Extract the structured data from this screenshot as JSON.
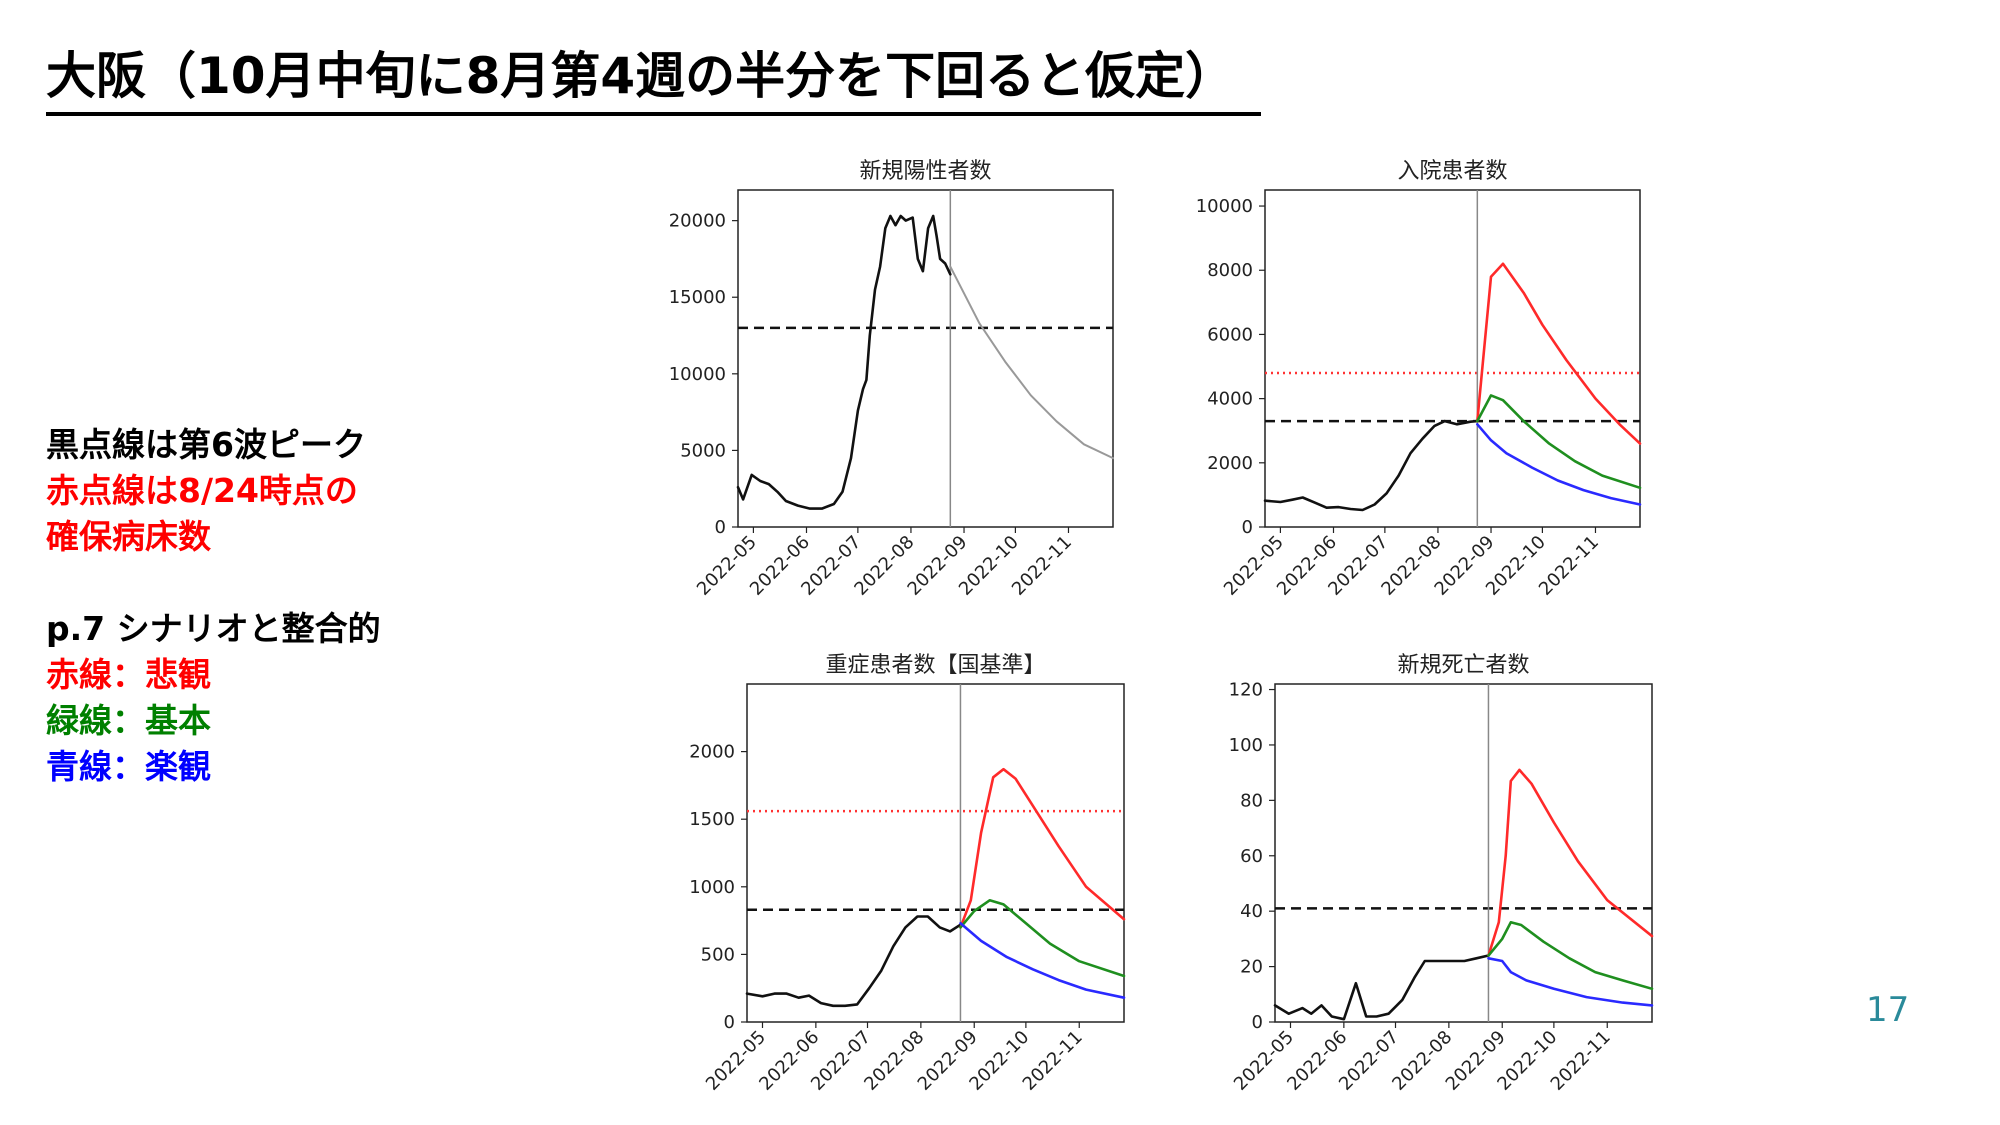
{
  "title": "大阪（10月中旬に8月第4週の半分を下回ると仮定）",
  "legend": {
    "line1": "黒点線は第6波ピーク",
    "line2": "赤点線は8/24時点の",
    "line3": "確保病床数",
    "line4": "p.7 シナリオと整合的",
    "red": "赤線：悲観",
    "green": "緑線：基本",
    "blue": "青線：楽観"
  },
  "page_number": "17",
  "colors": {
    "red": "#ff2a2a",
    "green": "#1f8f1f",
    "blue": "#2a2aff",
    "black": "#111111",
    "gray": "#999999"
  },
  "chart_data": [
    {
      "type": "line",
      "title": "新規陽性者数",
      "xlim": [
        "2022-04-22",
        "2022-11-27"
      ],
      "ylim": [
        0,
        22000
      ],
      "yticks": [
        0,
        5000,
        10000,
        15000,
        20000
      ],
      "xticks": [
        "2022-05",
        "2022-06",
        "2022-07",
        "2022-08",
        "2022-09",
        "2022-10",
        "2022-11"
      ],
      "vline": "2022-08-24",
      "black_dashed": 13000,
      "series": [
        {
          "color": "black",
          "points": [
            [
              "2022-04-22",
              2600
            ],
            [
              "2022-04-25",
              1800
            ],
            [
              "2022-04-30",
              3400
            ],
            [
              "2022-05-05",
              3000
            ],
            [
              "2022-05-10",
              2800
            ],
            [
              "2022-05-15",
              2300
            ],
            [
              "2022-05-20",
              1700
            ],
            [
              "2022-05-27",
              1400
            ],
            [
              "2022-06-03",
              1200
            ],
            [
              "2022-06-10",
              1200
            ],
            [
              "2022-06-17",
              1500
            ],
            [
              "2022-06-22",
              2300
            ],
            [
              "2022-06-27",
              4500
            ],
            [
              "2022-07-01",
              7600
            ],
            [
              "2022-07-04",
              9000
            ],
            [
              "2022-07-06",
              9600
            ],
            [
              "2022-07-08",
              12500
            ],
            [
              "2022-07-11",
              15500
            ],
            [
              "2022-07-14",
              17000
            ],
            [
              "2022-07-17",
              19500
            ],
            [
              "2022-07-20",
              20300
            ],
            [
              "2022-07-23",
              19700
            ],
            [
              "2022-07-26",
              20300
            ],
            [
              "2022-07-29",
              20000
            ],
            [
              "2022-08-02",
              20200
            ],
            [
              "2022-08-05",
              17500
            ],
            [
              "2022-08-08",
              16700
            ],
            [
              "2022-08-11",
              19500
            ],
            [
              "2022-08-14",
              20300
            ],
            [
              "2022-08-16",
              19000
            ],
            [
              "2022-08-18",
              17500
            ],
            [
              "2022-08-21",
              17200
            ],
            [
              "2022-08-24",
              16500
            ]
          ]
        },
        {
          "color": "gray",
          "points": [
            [
              "2022-08-24",
              17000
            ],
            [
              "2022-09-10",
              13300
            ],
            [
              "2022-09-25",
              10800
            ],
            [
              "2022-10-10",
              8600
            ],
            [
              "2022-10-25",
              6900
            ],
            [
              "2022-11-10",
              5400
            ],
            [
              "2022-11-27",
              4500
            ]
          ]
        }
      ]
    },
    {
      "type": "line",
      "title": "入院患者数",
      "xlim": [
        "2022-04-22",
        "2022-11-27"
      ],
      "ylim": [
        0,
        10500
      ],
      "yticks": [
        0,
        2000,
        4000,
        6000,
        8000,
        10000
      ],
      "xticks": [
        "2022-05",
        "2022-06",
        "2022-07",
        "2022-08",
        "2022-09",
        "2022-10",
        "2022-11"
      ],
      "vline": "2022-08-24",
      "black_dashed": 3300,
      "red_dotted": 4800,
      "series": [
        {
          "color": "black",
          "points": [
            [
              "2022-04-22",
              820
            ],
            [
              "2022-05-01",
              780
            ],
            [
              "2022-05-08",
              850
            ],
            [
              "2022-05-14",
              920
            ],
            [
              "2022-05-21",
              760
            ],
            [
              "2022-05-28",
              600
            ],
            [
              "2022-06-04",
              620
            ],
            [
              "2022-06-11",
              560
            ],
            [
              "2022-06-18",
              530
            ],
            [
              "2022-06-25",
              700
            ],
            [
              "2022-07-02",
              1050
            ],
            [
              "2022-07-09",
              1600
            ],
            [
              "2022-07-16",
              2300
            ],
            [
              "2022-07-23",
              2750
            ],
            [
              "2022-07-30",
              3150
            ],
            [
              "2022-08-05",
              3300
            ],
            [
              "2022-08-12",
              3200
            ],
            [
              "2022-08-20",
              3280
            ],
            [
              "2022-08-24",
              3300
            ]
          ]
        },
        {
          "color": "red",
          "points": [
            [
              "2022-08-24",
              3300
            ],
            [
              "2022-09-01",
              7800
            ],
            [
              "2022-09-08",
              8200
            ],
            [
              "2022-09-20",
              7300
            ],
            [
              "2022-10-01",
              6300
            ],
            [
              "2022-10-15",
              5200
            ],
            [
              "2022-11-01",
              4000
            ],
            [
              "2022-11-15",
              3200
            ],
            [
              "2022-11-27",
              2600
            ]
          ]
        },
        {
          "color": "green",
          "points": [
            [
              "2022-08-24",
              3300
            ],
            [
              "2022-09-01",
              4100
            ],
            [
              "2022-09-08",
              3950
            ],
            [
              "2022-09-20",
              3300
            ],
            [
              "2022-10-05",
              2600
            ],
            [
              "2022-10-20",
              2050
            ],
            [
              "2022-11-05",
              1600
            ],
            [
              "2022-11-27",
              1220
            ]
          ]
        },
        {
          "color": "blue",
          "points": [
            [
              "2022-08-24",
              3200
            ],
            [
              "2022-09-01",
              2700
            ],
            [
              "2022-09-10",
              2300
            ],
            [
              "2022-09-25",
              1850
            ],
            [
              "2022-10-10",
              1450
            ],
            [
              "2022-10-25",
              1150
            ],
            [
              "2022-11-10",
              900
            ],
            [
              "2022-11-27",
              700
            ]
          ]
        }
      ]
    },
    {
      "type": "line",
      "title": "重症患者数【国基準】",
      "xlim": [
        "2022-04-22",
        "2022-11-27"
      ],
      "ylim": [
        0,
        2500
      ],
      "yticks": [
        0,
        500,
        1000,
        1500,
        2000
      ],
      "xticks": [
        "2022-05",
        "2022-06",
        "2022-07",
        "2022-08",
        "2022-09",
        "2022-10",
        "2022-11"
      ],
      "vline": "2022-08-24",
      "black_dashed": 830,
      "red_dotted": 1560,
      "series": [
        {
          "color": "black",
          "points": [
            [
              "2022-04-22",
              210
            ],
            [
              "2022-05-01",
              190
            ],
            [
              "2022-05-08",
              210
            ],
            [
              "2022-05-15",
              210
            ],
            [
              "2022-05-22",
              180
            ],
            [
              "2022-05-28",
              195
            ],
            [
              "2022-06-04",
              140
            ],
            [
              "2022-06-11",
              120
            ],
            [
              "2022-06-18",
              120
            ],
            [
              "2022-06-25",
              130
            ],
            [
              "2022-07-02",
              250
            ],
            [
              "2022-07-09",
              380
            ],
            [
              "2022-07-16",
              560
            ],
            [
              "2022-07-23",
              700
            ],
            [
              "2022-07-30",
              780
            ],
            [
              "2022-08-05",
              780
            ],
            [
              "2022-08-12",
              700
            ],
            [
              "2022-08-18",
              670
            ],
            [
              "2022-08-24",
              720
            ]
          ]
        },
        {
          "color": "red",
          "points": [
            [
              "2022-08-24",
              700
            ],
            [
              "2022-08-30",
              900
            ],
            [
              "2022-09-05",
              1400
            ],
            [
              "2022-09-12",
              1810
            ],
            [
              "2022-09-18",
              1870
            ],
            [
              "2022-09-25",
              1800
            ],
            [
              "2022-10-05",
              1600
            ],
            [
              "2022-10-20",
              1300
            ],
            [
              "2022-11-05",
              1000
            ],
            [
              "2022-11-27",
              760
            ]
          ]
        },
        {
          "color": "green",
          "points": [
            [
              "2022-08-24",
              700
            ],
            [
              "2022-09-01",
              820
            ],
            [
              "2022-09-10",
              900
            ],
            [
              "2022-09-18",
              870
            ],
            [
              "2022-10-01",
              730
            ],
            [
              "2022-10-15",
              580
            ],
            [
              "2022-11-01",
              450
            ],
            [
              "2022-11-27",
              340
            ]
          ]
        },
        {
          "color": "blue",
          "points": [
            [
              "2022-08-24",
              730
            ],
            [
              "2022-09-05",
              600
            ],
            [
              "2022-09-20",
              480
            ],
            [
              "2022-10-05",
              390
            ],
            [
              "2022-10-20",
              310
            ],
            [
              "2022-11-05",
              240
            ],
            [
              "2022-11-27",
              180
            ]
          ]
        }
      ]
    },
    {
      "type": "line",
      "title": "新規死亡者数",
      "xlim": [
        "2022-04-22",
        "2022-11-27"
      ],
      "ylim": [
        0,
        122
      ],
      "yticks": [
        0,
        20,
        40,
        60,
        80,
        100,
        120
      ],
      "xticks": [
        "2022-05",
        "2022-06",
        "2022-07",
        "2022-08",
        "2022-09",
        "2022-10",
        "2022-11"
      ],
      "vline": "2022-08-24",
      "black_dashed": 41,
      "series": [
        {
          "color": "black",
          "points": [
            [
              "2022-04-22",
              6
            ],
            [
              "2022-04-30",
              3
            ],
            [
              "2022-05-08",
              5
            ],
            [
              "2022-05-13",
              3
            ],
            [
              "2022-05-19",
              6
            ],
            [
              "2022-05-25",
              2
            ],
            [
              "2022-06-01",
              1
            ],
            [
              "2022-06-08",
              14
            ],
            [
              "2022-06-14",
              2
            ],
            [
              "2022-06-20",
              2
            ],
            [
              "2022-06-27",
              3
            ],
            [
              "2022-07-05",
              8
            ],
            [
              "2022-07-12",
              16
            ],
            [
              "2022-07-18",
              22
            ],
            [
              "2022-07-26",
              22
            ],
            [
              "2022-08-02",
              22
            ],
            [
              "2022-08-10",
              22
            ],
            [
              "2022-08-17",
              23
            ],
            [
              "2022-08-24",
              24
            ]
          ]
        },
        {
          "color": "red",
          "points": [
            [
              "2022-08-24",
              24
            ],
            [
              "2022-08-30",
              36
            ],
            [
              "2022-09-03",
              60
            ],
            [
              "2022-09-06",
              87
            ],
            [
              "2022-09-11",
              91
            ],
            [
              "2022-09-18",
              86
            ],
            [
              "2022-10-01",
              72
            ],
            [
              "2022-10-15",
              58
            ],
            [
              "2022-11-01",
              44
            ],
            [
              "2022-11-27",
              31
            ]
          ]
        },
        {
          "color": "green",
          "points": [
            [
              "2022-08-24",
              24
            ],
            [
              "2022-09-01",
              30
            ],
            [
              "2022-09-06",
              36
            ],
            [
              "2022-09-12",
              35
            ],
            [
              "2022-09-25",
              29
            ],
            [
              "2022-10-10",
              23
            ],
            [
              "2022-10-25",
              18
            ],
            [
              "2022-11-10",
              15
            ],
            [
              "2022-11-27",
              12
            ]
          ]
        },
        {
          "color": "blue",
          "points": [
            [
              "2022-08-24",
              23
            ],
            [
              "2022-09-01",
              22
            ],
            [
              "2022-09-06",
              18
            ],
            [
              "2022-09-15",
              15
            ],
            [
              "2022-10-01",
              12
            ],
            [
              "2022-10-20",
              9
            ],
            [
              "2022-11-10",
              7
            ],
            [
              "2022-11-27",
              6
            ]
          ]
        }
      ]
    }
  ]
}
